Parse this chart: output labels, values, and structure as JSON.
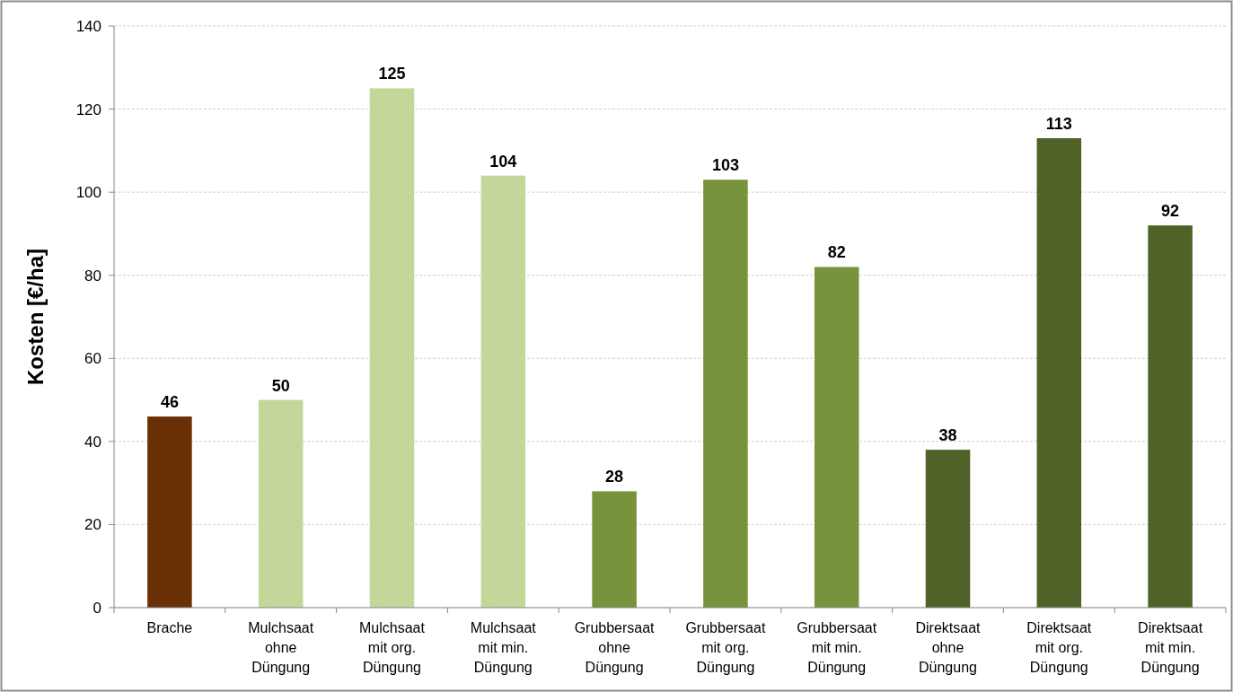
{
  "chart_data": {
    "type": "bar",
    "ylabel": "Kosten [€/ha]",
    "categories": [
      "Brache",
      "Mulchsaat\nohne\nDüngung",
      "Mulchsaat\nmit org.\nDüngung",
      "Mulchsaat\nmit min.\nDüngung",
      "Grubbersaat\nohne\nDüngung",
      "Grubbersaat\nmit org.\nDüngung",
      "Grubbersaat\nmit min.\nDüngung",
      "Direktsaat\nohne\nDüngung",
      "Direktsaat\nmit org.\nDüngung",
      "Direktsaat\nmit min.\nDüngung"
    ],
    "values": [
      46,
      50,
      125,
      104,
      28,
      103,
      82,
      38,
      113,
      92
    ],
    "colors": [
      "#6b3106",
      "#c4d79b",
      "#c4d79b",
      "#c4d79b",
      "#77933c",
      "#77933c",
      "#77933c",
      "#4f6228",
      "#4f6228",
      "#4f6228"
    ],
    "ylim": [
      0,
      140
    ],
    "yticks": [
      0,
      20,
      40,
      60,
      80,
      100,
      120,
      140
    ],
    "grid": "y",
    "data_labels": true
  }
}
